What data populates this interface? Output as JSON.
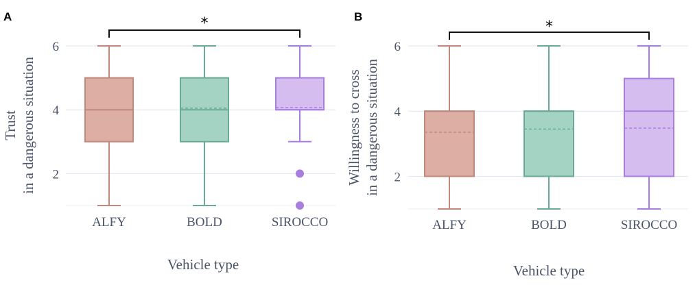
{
  "chart_data": [
    {
      "type": "box",
      "panel_label": "A",
      "xlabel": "Vehicle type",
      "ylabel_lines": [
        "Trust",
        "in a dangerous situation"
      ],
      "yticks": [
        2,
        4,
        6
      ],
      "ylim": [
        1,
        6
      ],
      "significance": {
        "from": "ALFY",
        "to": "SIROCCO",
        "label": "*"
      },
      "series": [
        {
          "name": "ALFY",
          "min": 1,
          "q1": 3,
          "median": 4,
          "mean": 4.0,
          "q3": 5,
          "max": 6,
          "outliers": [],
          "fill": "#dcaea4",
          "stroke": "#c0897b"
        },
        {
          "name": "BOLD",
          "min": 1,
          "q1": 3,
          "median": 4,
          "mean": 4.05,
          "q3": 5,
          "max": 6,
          "outliers": [],
          "fill": "#a4d3c4",
          "stroke": "#6aab95"
        },
        {
          "name": "SIROCCO",
          "min": 3,
          "q1": 4,
          "median": 4,
          "mean": 4.07,
          "q3": 5,
          "max": 6,
          "outliers": [
            2,
            1
          ],
          "fill": "#d6bdf0",
          "stroke": "#a77ee0"
        }
      ]
    },
    {
      "type": "box",
      "panel_label": "B",
      "xlabel": "Vehicle type",
      "ylabel_lines": [
        "Willingness to cross",
        "in a dangerous situation"
      ],
      "yticks": [
        2,
        4,
        6
      ],
      "ylim": [
        1,
        6
      ],
      "significance": {
        "from": "ALFY",
        "to": "SIROCCO",
        "label": "*"
      },
      "series": [
        {
          "name": "ALFY",
          "min": 1,
          "q1": 2,
          "median": 4,
          "mean": 3.35,
          "q3": 4,
          "max": 6,
          "outliers": [],
          "fill": "#dcaea4",
          "stroke": "#c0897b"
        },
        {
          "name": "BOLD",
          "min": 1,
          "q1": 2,
          "median": 4,
          "mean": 3.45,
          "q3": 4,
          "max": 6,
          "outliers": [],
          "fill": "#a4d3c4",
          "stroke": "#6aab95"
        },
        {
          "name": "SIROCCO",
          "min": 1,
          "q1": 2,
          "median": 4,
          "mean": 3.48,
          "q3": 5,
          "max": 6,
          "outliers": [],
          "fill": "#d6bdf0",
          "stroke": "#a77ee0"
        }
      ]
    }
  ]
}
